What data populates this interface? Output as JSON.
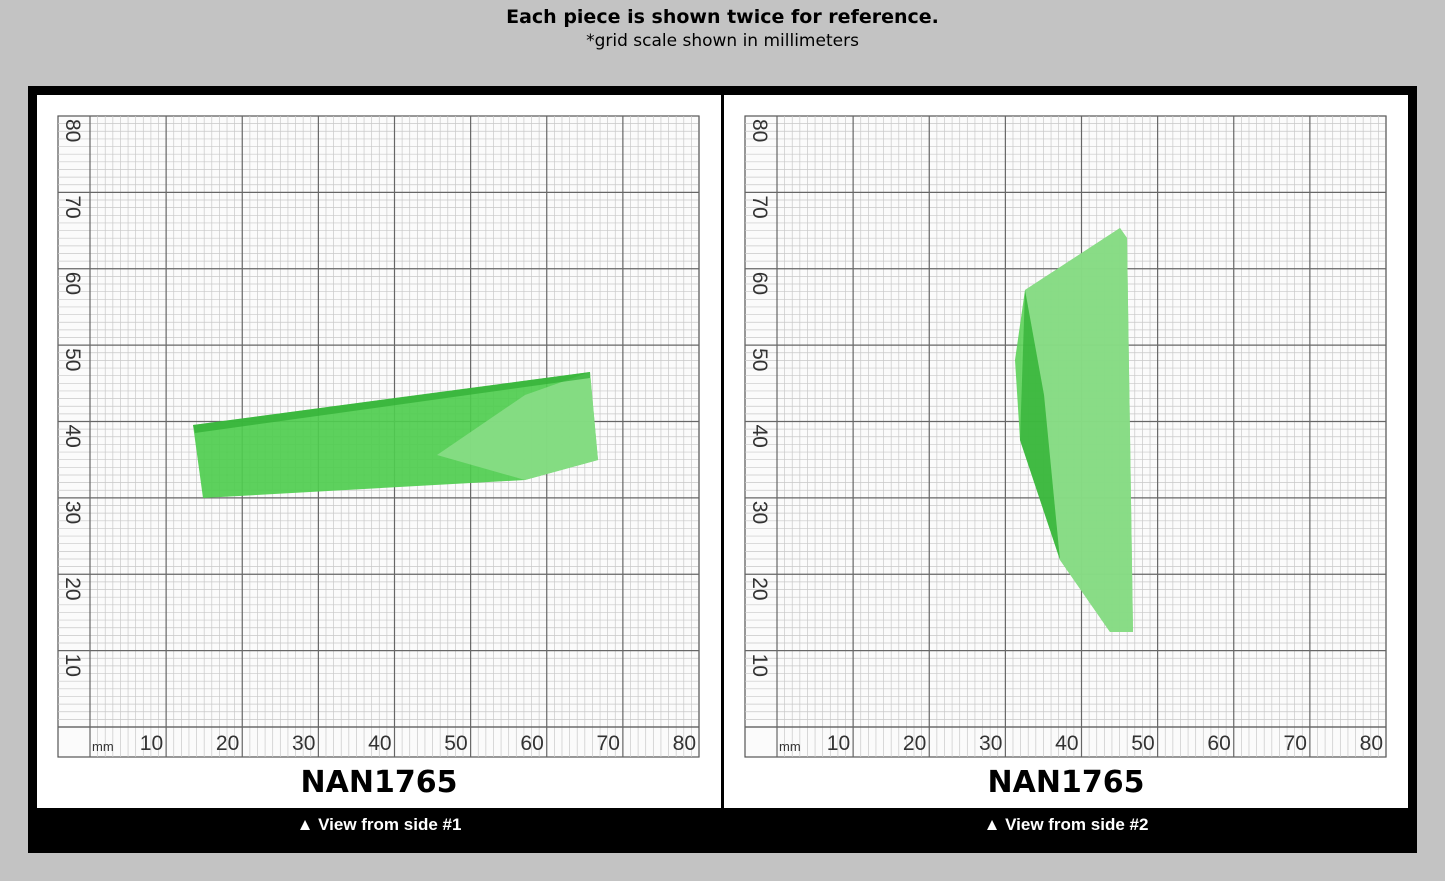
{
  "header": {
    "title": "Each piece is shown twice for reference.",
    "subtitle": "*grid scale shown in millimeters"
  },
  "grid": {
    "unit": "mm",
    "x_labels": [
      10,
      20,
      30,
      40,
      50,
      60,
      70,
      80
    ],
    "y_labels": [
      10,
      20,
      30,
      40,
      50,
      60,
      70,
      80
    ]
  },
  "panels": [
    {
      "id": "NAN1765",
      "caption": "▲ View from side #1"
    },
    {
      "id": "NAN1765",
      "caption": "▲ View from side #2"
    }
  ]
}
